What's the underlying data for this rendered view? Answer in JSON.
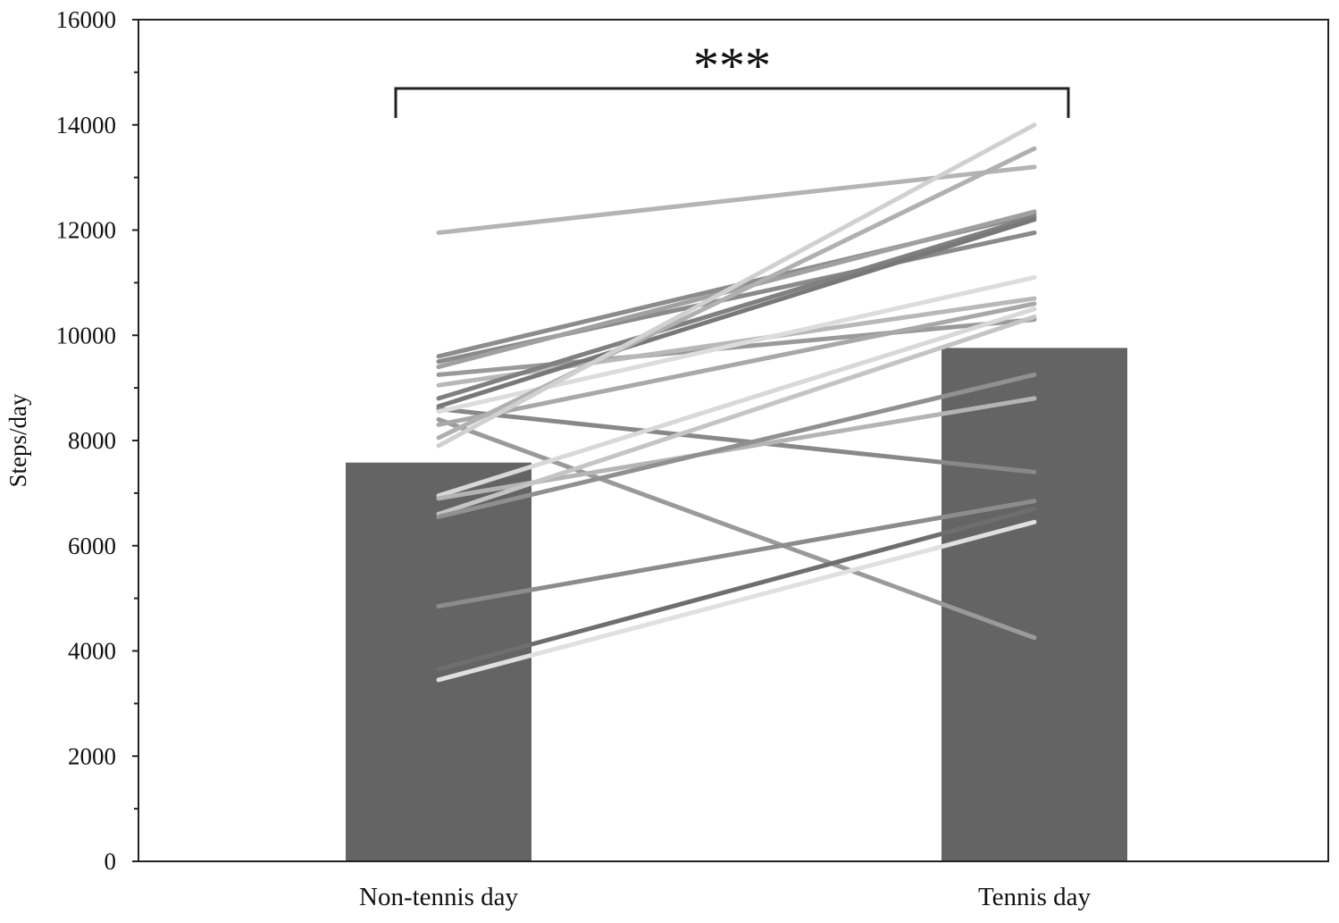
{
  "chart_data": {
    "type": "bar",
    "categories": [
      "Non-tennis day",
      "Tennis day"
    ],
    "values": [
      7580,
      9760
    ],
    "ylabel": "Steps/day",
    "xlabel": "",
    "ylim": [
      0,
      16000
    ],
    "yticks": [
      0,
      2000,
      4000,
      6000,
      8000,
      10000,
      12000,
      14000,
      16000
    ],
    "yticks_text": [
      "0",
      "2000",
      "4000",
      "6000",
      "8000",
      "10000",
      "12000",
      "14000",
      "16000"
    ],
    "grid": false,
    "bar_color": "#646464",
    "significance": "***",
    "paired_lines": [
      {
        "values": [
          11950,
          13200
        ],
        "color": "#b4b4b4"
      },
      {
        "values": [
          9600,
          12300
        ],
        "color": "#8c8c8c"
      },
      {
        "values": [
          9500,
          11950
        ],
        "color": "#8a8a8a"
      },
      {
        "values": [
          9400,
          12350
        ],
        "color": "#a0a0a0"
      },
      {
        "values": [
          9250,
          10300
        ],
        "color": "#9a9a9a"
      },
      {
        "values": [
          9050,
          10700
        ],
        "color": "#b8b8b8"
      },
      {
        "values": [
          8800,
          12250
        ],
        "color": "#808080"
      },
      {
        "values": [
          8650,
          12200
        ],
        "color": "#787878"
      },
      {
        "values": [
          8600,
          7400
        ],
        "color": "#888888"
      },
      {
        "values": [
          8550,
          11100
        ],
        "color": "#dcdcdc"
      },
      {
        "values": [
          8400,
          4250
        ],
        "color": "#9a9a9a"
      },
      {
        "values": [
          8300,
          10600
        ],
        "color": "#a8a8a8"
      },
      {
        "values": [
          8050,
          13550
        ],
        "color": "#b0b0b0"
      },
      {
        "values": [
          7900,
          14000
        ],
        "color": "#d0d0d0"
      },
      {
        "values": [
          6950,
          10500
        ],
        "color": "#d8d8d8"
      },
      {
        "values": [
          6900,
          8800
        ],
        "color": "#b4b4b4"
      },
      {
        "values": [
          6600,
          10350
        ],
        "color": "#c4c4c4"
      },
      {
        "values": [
          6550,
          9250
        ],
        "color": "#909090"
      },
      {
        "values": [
          4850,
          6850
        ],
        "color": "#8c8c8c"
      },
      {
        "values": [
          3650,
          6700
        ],
        "color": "#6e6e6e"
      },
      {
        "values": [
          3450,
          6450
        ],
        "color": "#e0e0e0"
      }
    ]
  }
}
